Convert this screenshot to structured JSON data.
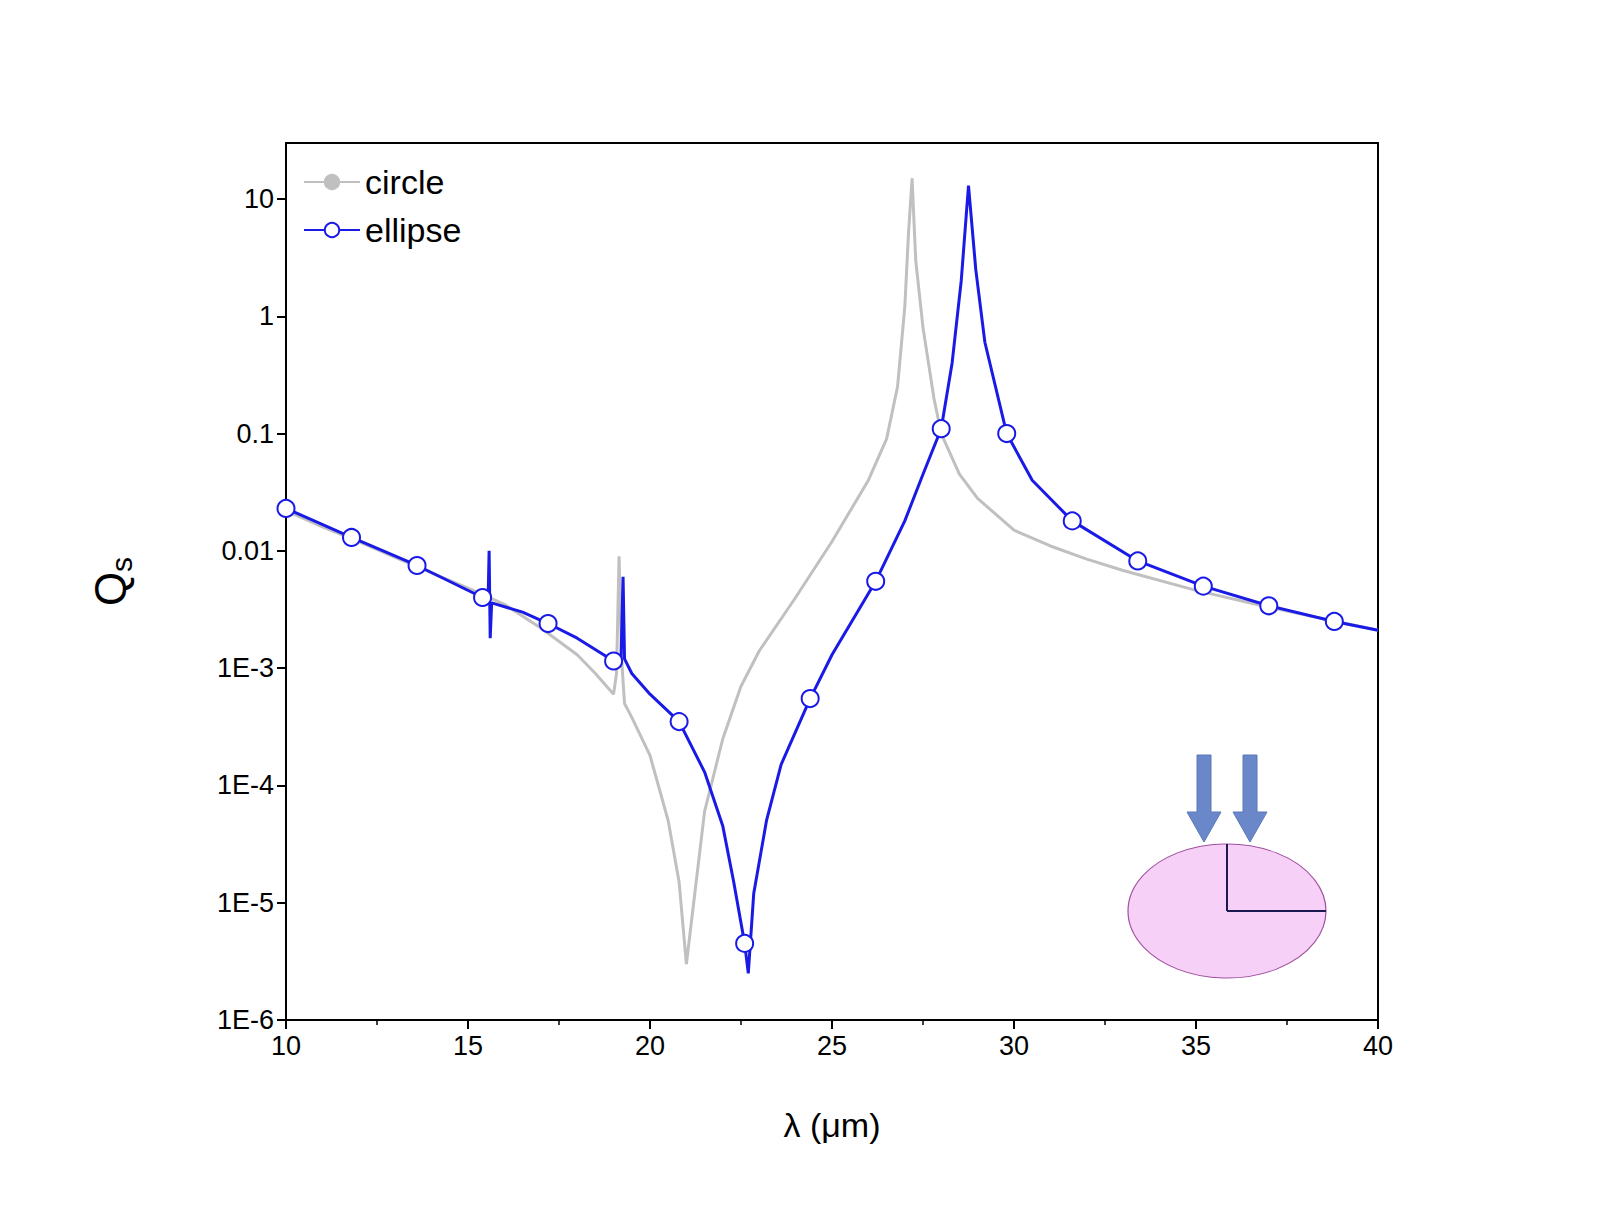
{
  "chart_data": {
    "type": "line",
    "xlabel": "λ (μm)",
    "ylabel": "Qs",
    "log": "y",
    "grid": false,
    "legend": "upper left",
    "xlim": [
      10,
      40
    ],
    "xticks": [
      10,
      15,
      20,
      25,
      30,
      35,
      40
    ],
    "ylim": [
      1e-06,
      30
    ],
    "yticks": [
      {
        "value": 1e-06,
        "label": "1E-6"
      },
      {
        "value": 1e-05,
        "label": "1E-5"
      },
      {
        "value": 0.0001,
        "label": "1E-4"
      },
      {
        "value": 0.001,
        "label": "1E-3"
      },
      0.01,
      0.1,
      1,
      10
    ],
    "series": [
      {
        "name": "circle",
        "color": "#c0c0c0",
        "marker": "none",
        "line_style": "solid",
        "x": [
          10,
          11,
          12,
          13,
          14,
          15,
          16,
          17,
          18,
          18.5,
          19,
          19.08,
          19.15,
          19.22,
          19.3,
          19.5,
          20,
          20.5,
          20.8,
          21,
          21.2,
          21.5,
          22,
          22.5,
          23,
          24,
          25,
          26,
          26.5,
          26.8,
          27,
          27.1,
          27.2,
          27.3,
          27.5,
          27.8,
          28,
          28.5,
          29,
          30,
          31,
          32,
          33,
          35,
          37,
          40
        ],
        "values": [
          0.022,
          0.016,
          0.012,
          0.0088,
          0.0065,
          0.0048,
          0.0035,
          0.0022,
          0.0013,
          0.0009,
          0.0006,
          0.0009,
          0.009,
          0.0012,
          0.0005,
          0.00038,
          0.00018,
          5e-05,
          1.5e-05,
          3e-06,
          1e-05,
          6e-05,
          0.00025,
          0.0007,
          0.0014,
          0.004,
          0.012,
          0.04,
          0.09,
          0.25,
          1.2,
          5,
          15,
          3,
          0.8,
          0.2,
          0.1,
          0.045,
          0.028,
          0.015,
          0.011,
          0.0085,
          0.0068,
          0.0046,
          0.0033,
          0.0021
        ]
      },
      {
        "name": "ellipse",
        "color": "#1a1ae6",
        "marker": "circle",
        "line_style": "solid",
        "x": [
          10,
          11.8,
          13.6,
          15.4,
          15.55,
          15.58,
          15.61,
          15.65,
          16.5,
          17.2,
          18,
          19,
          19.2,
          19.26,
          19.3,
          19.5,
          20,
          20.8,
          21.5,
          22,
          22.3,
          22.6,
          22.7,
          22.85,
          23.2,
          23.6,
          24.4,
          25,
          26.2,
          27,
          27.5,
          28,
          28.3,
          28.55,
          28.75,
          28.95,
          29.2,
          29.8,
          30.5,
          31.6,
          33.4,
          35.2,
          37,
          38.8,
          40
        ],
        "values": [
          0.023,
          0.013,
          0.0075,
          0.004,
          0.0036,
          0.01,
          0.0018,
          0.0036,
          0.003,
          0.0024,
          0.0018,
          0.00115,
          0.0011,
          0.006,
          0.0012,
          0.0009,
          0.0006,
          0.00035,
          0.00013,
          4.5e-05,
          1.5e-05,
          4.5e-06,
          2.5e-06,
          1.2e-05,
          5e-05,
          0.00015,
          0.00055,
          0.0013,
          0.0055,
          0.018,
          0.045,
          0.11,
          0.4,
          2,
          13,
          2.5,
          0.6,
          0.1,
          0.04,
          0.018,
          0.0082,
          0.005,
          0.0034,
          0.0025,
          0.0021
        ]
      }
    ]
  }
}
